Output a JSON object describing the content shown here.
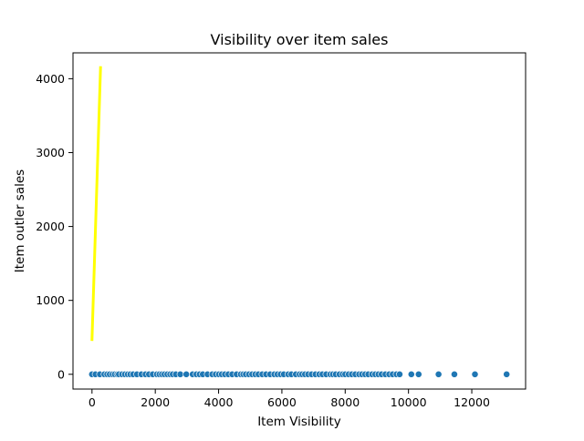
{
  "chart_data": {
    "type": "scatter",
    "title": "Visibility over item sales",
    "xlabel": "Item Visibility",
    "ylabel": "Item outler sales",
    "xlim": [
      -600,
      13700
    ],
    "ylim": [
      -200,
      4350
    ],
    "xticks": [
      0,
      2000,
      4000,
      6000,
      8000,
      10000,
      12000
    ],
    "yticks": [
      0,
      1000,
      2000,
      3000,
      4000
    ],
    "grid": false,
    "legend": "none",
    "series": [
      {
        "type": "scatter",
        "color": "#1f77b4",
        "x": [
          0,
          110,
          250,
          390,
          480,
          560,
          650,
          720,
          800,
          850,
          950,
          1040,
          1130,
          1210,
          1300,
          1420,
          1560,
          1690,
          1800,
          1920,
          2050,
          2130,
          2210,
          2290,
          2380,
          2470,
          2550,
          2650,
          2790,
          2980,
          3180,
          3300,
          3400,
          3500,
          3650,
          3800,
          3910,
          4010,
          4100,
          4200,
          4310,
          4430,
          4570,
          4700,
          4780,
          4860,
          4960,
          5060,
          5160,
          5260,
          5380,
          5500,
          5630,
          5760,
          5860,
          5960,
          6060,
          6200,
          6300,
          6440,
          6560,
          6640,
          6730,
          6830,
          6940,
          7060,
          7180,
          7280,
          7400,
          7530,
          7610,
          7700,
          7820,
          7920,
          8000,
          8110,
          8210,
          8320,
          8440,
          8530,
          8630,
          8730,
          8850,
          8950,
          9050,
          9150,
          9270,
          9390,
          9500,
          9620,
          9720,
          10090,
          10320,
          10950,
          11450,
          12100,
          13100
        ],
        "y": [
          0,
          0,
          0,
          0,
          0,
          0,
          0,
          0,
          0,
          0,
          0,
          0,
          0,
          0,
          0,
          0,
          0,
          0,
          0,
          0,
          0,
          0,
          0,
          0,
          0,
          0,
          0,
          0,
          0,
          0,
          0,
          0,
          0,
          0,
          0,
          0,
          0,
          0,
          0,
          0,
          0,
          0,
          0,
          0,
          0,
          0,
          0,
          0,
          0,
          0,
          0,
          0,
          0,
          0,
          0,
          0,
          0,
          0,
          0,
          0,
          0,
          0,
          0,
          0,
          0,
          0,
          0,
          0,
          0,
          0,
          0,
          0,
          0,
          0,
          0,
          0,
          0,
          0,
          0,
          0,
          0,
          0,
          0,
          0,
          0,
          0,
          0,
          0,
          0,
          0,
          0,
          0,
          0,
          0,
          0,
          0,
          0
        ]
      },
      {
        "type": "line",
        "color": "#ffff00",
        "x": [
          0,
          270
        ],
        "y": [
          470,
          4150
        ]
      }
    ]
  }
}
